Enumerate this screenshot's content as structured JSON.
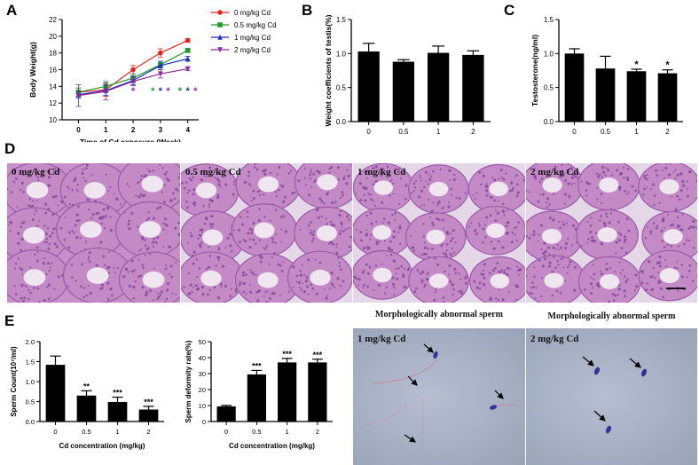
{
  "panels": {
    "a": "A",
    "b": "B",
    "c": "C",
    "d": "D",
    "e": "E"
  },
  "chart_data": [
    {
      "panel": "A",
      "type": "line",
      "xlabel": "Time of Cd exposure (Week)",
      "ylabel": "Body Weight(g)",
      "x": [
        0,
        1,
        2,
        3,
        4
      ],
      "xlim": [
        -0.6,
        4.4
      ],
      "ylim": [
        10,
        22
      ],
      "yticks": [
        10,
        12,
        14,
        16,
        18,
        20,
        22
      ],
      "series": [
        {
          "name": "0 mg/kg Cd",
          "color": "#e8231f",
          "marker": "circle",
          "values": [
            13.3,
            13.6,
            16.0,
            18.0,
            19.5
          ],
          "errors": [
            0.5,
            0.8,
            0.5,
            0.5,
            0.2
          ]
        },
        {
          "name": "0.5 mg/kg Cd",
          "color": "#1f9a2a",
          "marker": "square",
          "values": [
            13.3,
            14.0,
            15.0,
            16.6,
            18.3
          ],
          "errors": [
            0.5,
            0.6,
            0.5,
            0.4,
            0.2
          ]
        },
        {
          "name": "1 mg/kg Cd",
          "color": "#1f2fbf",
          "marker": "triangle",
          "values": [
            13.0,
            13.5,
            14.7,
            16.5,
            17.3
          ],
          "errors": [
            0.4,
            0.6,
            0.5,
            0.5,
            0.3
          ]
        },
        {
          "name": "2 mg/kg Cd",
          "color": "#8a2a9a",
          "marker": "triangle-down",
          "values": [
            12.9,
            13.4,
            14.6,
            15.5,
            16.1
          ],
          "errors": [
            1.3,
            1.0,
            0.5,
            0.5,
            0.2
          ]
        }
      ],
      "annotations": [
        {
          "x": 2,
          "y": 13.6,
          "text": "*",
          "color": "#8a2a9a"
        },
        {
          "x": 2.72,
          "y": 13.6,
          "text": "*",
          "color": "#1f9a2a"
        },
        {
          "x": 3.0,
          "y": 13.6,
          "text": "*",
          "color": "#1f2fbf"
        },
        {
          "x": 3.28,
          "y": 13.6,
          "text": "*",
          "color": "#8a2a9a"
        },
        {
          "x": 3.72,
          "y": 13.6,
          "text": "*",
          "color": "#1f9a2a"
        },
        {
          "x": 4.0,
          "y": 13.6,
          "text": "*",
          "color": "#1f2fbf"
        },
        {
          "x": 4.28,
          "y": 13.6,
          "text": "*",
          "color": "#8a2a9a"
        }
      ]
    },
    {
      "panel": "B",
      "type": "bar",
      "xlabel": "Cd concentration (mg/kg)",
      "ylabel": "Weight coefficients of testis(%)",
      "categories": [
        "0",
        "0.5",
        "1",
        "2"
      ],
      "values": [
        1.03,
        0.88,
        1.01,
        0.98
      ],
      "errors": [
        0.12,
        0.03,
        0.1,
        0.06
      ],
      "ylim": [
        0,
        1.5
      ],
      "yticks": [
        0,
        0.5,
        1.0,
        1.5
      ],
      "ytick_labels": [
        "0.0",
        "0.5",
        "1.0",
        "1.5"
      ],
      "sig": [
        "",
        "",
        "",
        ""
      ]
    },
    {
      "panel": "C",
      "type": "bar",
      "xlabel": "Cd concentration (mg/kg)",
      "ylabel": "Testosterone(ng/ml)",
      "categories": [
        "0",
        "0.5",
        "1",
        "2"
      ],
      "values": [
        1.0,
        0.78,
        0.74,
        0.71
      ],
      "errors": [
        0.07,
        0.18,
        0.03,
        0.05
      ],
      "ylim": [
        0,
        1.5
      ],
      "yticks": [
        0,
        0.5,
        1.0,
        1.5
      ],
      "ytick_labels": [
        "0.0",
        "0.5",
        "1.0",
        "1.5"
      ],
      "sig": [
        "",
        "",
        "*",
        "*"
      ]
    },
    {
      "panel": "E1",
      "type": "bar",
      "xlabel": "Cd concentration (mg/kg)",
      "ylabel": "Sperm Count(10⁷/ml)",
      "categories": [
        "0",
        "0.5",
        "1",
        "2"
      ],
      "values": [
        1.42,
        0.65,
        0.49,
        0.3
      ],
      "errors": [
        0.22,
        0.12,
        0.12,
        0.08
      ],
      "ylim": [
        0,
        2.0
      ],
      "yticks": [
        0,
        0.5,
        1.0,
        1.5,
        2.0
      ],
      "ytick_labels": [
        "0.0",
        "0.5",
        "1.0",
        "1.5",
        "2.0"
      ],
      "sig": [
        "",
        "**",
        "***",
        "***"
      ]
    },
    {
      "panel": "E2",
      "type": "bar",
      "xlabel": "Cd concentration (mg/kg)",
      "ylabel": "Sperm deformity rate(%)",
      "categories": [
        "0",
        "0.5",
        "1",
        "2"
      ],
      "values": [
        9.5,
        29.5,
        37.0,
        37.0
      ],
      "errors": [
        0.6,
        2.5,
        2.5,
        2.0
      ],
      "ylim": [
        0,
        50
      ],
      "yticks": [
        0,
        10,
        20,
        30,
        40,
        50
      ],
      "ytick_labels": [
        "0",
        "10",
        "20",
        "30",
        "40",
        "50"
      ],
      "sig": [
        "",
        "***",
        "***",
        "***"
      ]
    }
  ],
  "histology": [
    {
      "label": "0 mg/kg Cd"
    },
    {
      "label": "0.5 mg/kg Cd"
    },
    {
      "label": "1 mg/kg Cd"
    },
    {
      "label": "2 mg/kg Cd"
    }
  ],
  "sperm_images": [
    {
      "title": "Morphologically abnormal sperm",
      "label": "1 mg/kg Cd"
    },
    {
      "title": "Morphologically abnormal sperm",
      "label": "2 mg/kg Cd"
    }
  ],
  "colors": {
    "tissue_pink": "#c98fc8",
    "tissue_dark": "#8e4fa0",
    "lumen": "#ece4ee",
    "sperm_bg": "#aab1c4",
    "sperm_head": "#3a2e9a"
  }
}
